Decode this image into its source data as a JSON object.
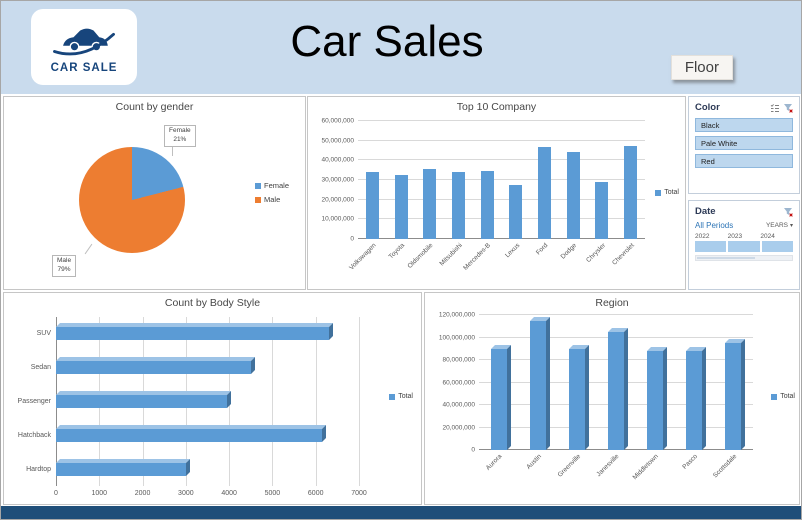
{
  "header": {
    "title": "Car Sales",
    "logo_text": "CAR SALE",
    "floor_button": "Floor"
  },
  "slicers": {
    "color": {
      "title": "Color",
      "items": [
        "Black",
        "Pale White",
        "Red"
      ]
    },
    "date": {
      "title": "Date",
      "period_label": "All Periods",
      "granularity": "YEARS",
      "caret": "▾",
      "years": [
        "2022",
        "2023",
        "2024"
      ]
    }
  },
  "icons": {
    "logo": "car-icon",
    "color_slicer": [
      "multi-select-icon",
      "clear-filter-icon"
    ],
    "date_slicer": [
      "clear-filter-icon"
    ]
  },
  "colors": {
    "header_band": "#c9dbed",
    "navy_bar": "#1f4e79",
    "accent_blue": "#5b9bd5",
    "accent_orange": "#ed7d31",
    "bar_top_face": "#9dc3e6",
    "bar_side_face": "#41719c",
    "slicer_item_fill": "#bdd7ee",
    "timeline_fill": "#a9cdec"
  },
  "chart_data": [
    {
      "id": "gender",
      "type": "pie",
      "title": "Count by gender",
      "labels": [
        "Female",
        "Male"
      ],
      "values": [
        21,
        79
      ],
      "colors": [
        "#5b9bd5",
        "#ed7d31"
      ],
      "legend_position": "right",
      "callouts": [
        {
          "name": "Female",
          "pct": "21%"
        },
        {
          "name": "Male",
          "pct": "79%"
        }
      ]
    },
    {
      "id": "top10company",
      "type": "bar",
      "title": "Top 10 Company",
      "categories": [
        "Volkswagen",
        "Toyota",
        "Oldsmobile",
        "Mitsubishi",
        "Mercedes-B",
        "Lexus",
        "Ford",
        "Dodge",
        "Chrysler",
        "Chevrolet"
      ],
      "series": [
        {
          "name": "Total",
          "values": [
            34000000,
            32500000,
            35500000,
            34000000,
            34500000,
            27500000,
            47000000,
            44000000,
            29000000,
            47500000
          ]
        }
      ],
      "ylim": [
        0,
        60000000
      ],
      "ytick_step": 10000000,
      "tick_format": "comma",
      "legend_position": "right",
      "grid": true
    },
    {
      "id": "bodystyle",
      "type": "bar",
      "orientation": "horizontal",
      "title": "Count by Body Style",
      "categories": [
        "SUV",
        "Sedan",
        "Passenger",
        "Hatchback",
        "Hardtop"
      ],
      "series": [
        {
          "name": "Total",
          "values": [
            6300,
            4500,
            3950,
            6150,
            3000
          ]
        }
      ],
      "xlim": [
        0,
        7000
      ],
      "xtick_step": 1000,
      "tick_format": "plain",
      "legend_position": "right",
      "grid": true
    },
    {
      "id": "region",
      "type": "bar",
      "title": "Region",
      "categories": [
        "Aurora",
        "Austin",
        "Greenville",
        "Janesville",
        "Middletown",
        "Pasco",
        "Scottsdale"
      ],
      "series": [
        {
          "name": "Total",
          "values": [
            90000000,
            115000000,
            90000000,
            105000000,
            88000000,
            88000000,
            95000000
          ]
        }
      ],
      "ylim": [
        0,
        120000000
      ],
      "ytick_step": 20000000,
      "tick_format": "comma",
      "legend_position": "right",
      "style_3d": true,
      "grid": true
    }
  ]
}
